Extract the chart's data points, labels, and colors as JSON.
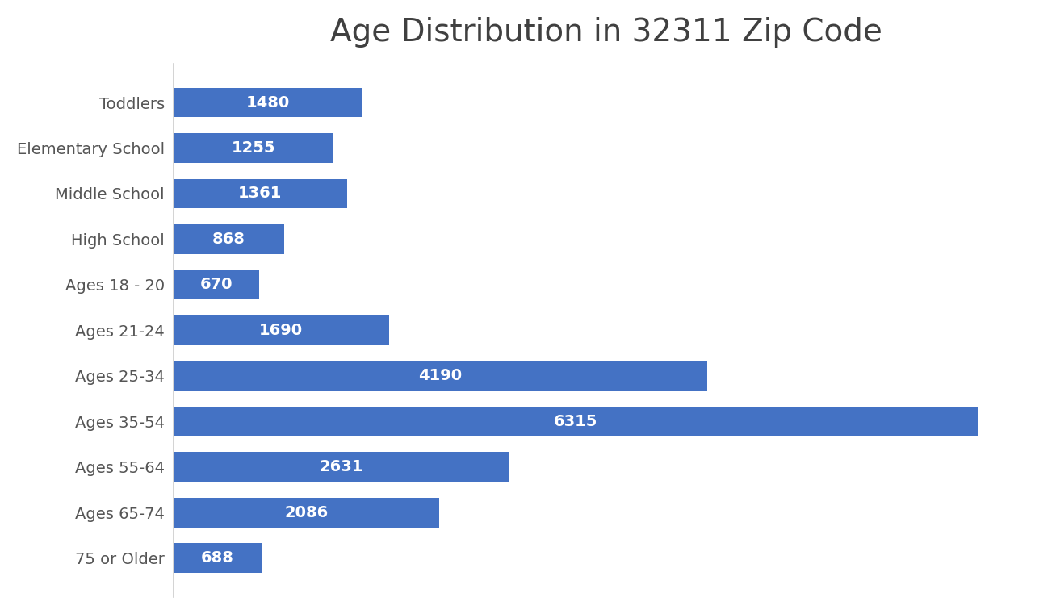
{
  "title": "Age Distribution in 32311 Zip Code",
  "categories": [
    "Toddlers",
    "Elementary School",
    "Middle School",
    "High School",
    "Ages 18 - 20",
    "Ages 21-24",
    "Ages 25-34",
    "Ages 35-54",
    "Ages 55-64",
    "Ages 65-74",
    "75 or Older"
  ],
  "values": [
    1480,
    1255,
    1361,
    868,
    670,
    1690,
    4190,
    6315,
    2631,
    2086,
    688
  ],
  "bar_color": "#4472C4",
  "label_color": "#ffffff",
  "title_color": "#404040",
  "tick_label_color": "#555555",
  "background_color": "#ffffff",
  "title_fontsize": 28,
  "label_fontsize": 14,
  "category_fontsize": 14,
  "bar_height": 0.65,
  "xlim": [
    0,
    6800
  ]
}
